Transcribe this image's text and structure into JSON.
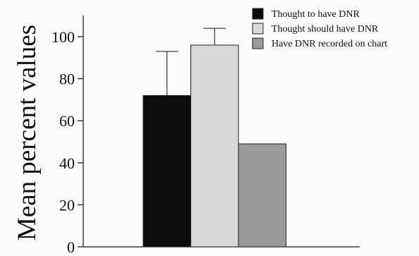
{
  "chart_data": {
    "type": "bar",
    "ylabel": "Mean percent values",
    "ylim": [
      0,
      100
    ],
    "yticks": [
      0,
      20,
      40,
      60,
      80,
      100
    ],
    "legend_position": "top-right",
    "grid": false,
    "series": [
      {
        "name": "Thought to have DNR",
        "value": 72,
        "error_upper": 93,
        "color": "#0d0d0d"
      },
      {
        "name": "Thought should have DNR",
        "value": 96,
        "error_upper": 104,
        "color": "#d8d8d6"
      },
      {
        "name": "Have DNR recorded on chart",
        "value": 49,
        "error_upper": null,
        "color": "#9a9a98"
      }
    ]
  }
}
